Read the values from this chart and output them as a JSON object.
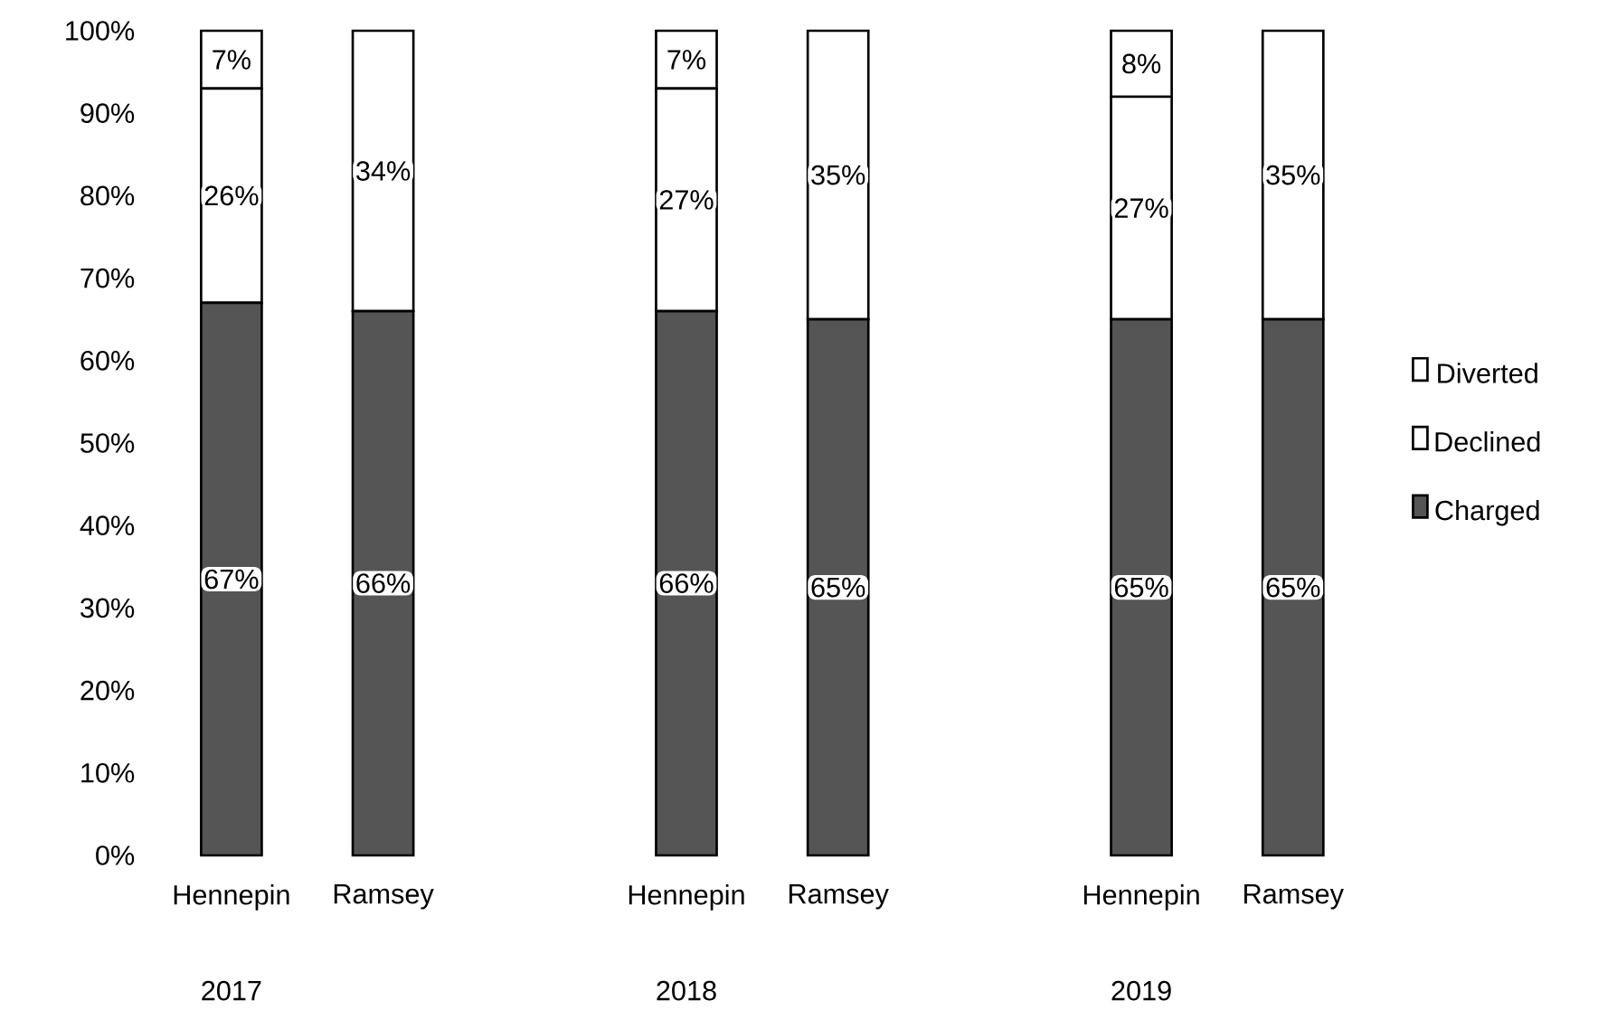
{
  "chart_data": {
    "type": "bar",
    "stacked": true,
    "categories": [
      "Hennepin",
      "Ramsey",
      null,
      "Hennepin",
      "Ramsey",
      null,
      "Hennepin",
      "Ramsey"
    ],
    "series": [
      {
        "name": "Charged",
        "color": "#555555",
        "values": [
          67,
          66,
          null,
          66,
          65,
          null,
          65,
          65
        ],
        "value_labels": [
          "67%",
          "66%",
          null,
          "66%",
          "65%",
          null,
          "65%",
          "65%"
        ]
      },
      {
        "name": "Declined",
        "color": "#ffffff",
        "values": [
          26,
          34,
          null,
          27,
          35,
          null,
          27,
          35
        ],
        "value_labels": [
          "26%",
          "34%",
          null,
          "27%",
          "35%",
          null,
          "27%",
          "35%"
        ]
      },
      {
        "name": "Diverted",
        "color": "#ffffff",
        "values": [
          7,
          0,
          null,
          7,
          0,
          null,
          8,
          0
        ],
        "value_labels": [
          "7%",
          null,
          null,
          "7%",
          null,
          null,
          "8%",
          null
        ]
      }
    ],
    "ylim": [
      0,
      100
    ],
    "yticks": [
      {
        "value": 0,
        "label": "0%"
      },
      {
        "value": 10,
        "label": "10%"
      },
      {
        "value": 20,
        "label": "20%"
      },
      {
        "value": 30,
        "label": "30%"
      },
      {
        "value": 40,
        "label": "40%"
      },
      {
        "value": 50,
        "label": "50%"
      },
      {
        "value": 60,
        "label": "60%"
      },
      {
        "value": 70,
        "label": "70%"
      },
      {
        "value": 80,
        "label": "80%"
      },
      {
        "value": 90,
        "label": "90%"
      },
      {
        "value": 100,
        "label": "100%"
      }
    ],
    "annotations": [
      "2017",
      "2018",
      "2019"
    ],
    "legend": "right"
  }
}
